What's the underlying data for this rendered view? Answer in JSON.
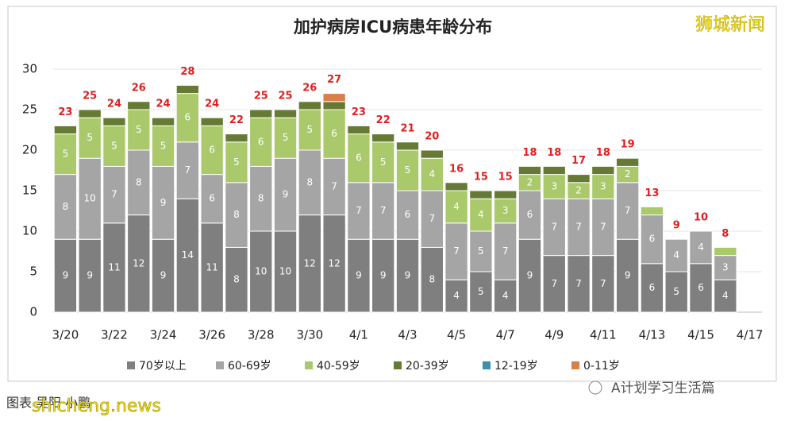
{
  "chart_data": {
    "type": "stacked_bar",
    "title": "加护病房ICU病患年龄分布",
    "categories": [
      "3/20",
      null,
      "3/22",
      null,
      "3/24",
      null,
      "3/26",
      null,
      "3/28",
      null,
      "3/30",
      null,
      "4/1",
      null,
      "4/3",
      null,
      "4/5",
      null,
      "4/7",
      null,
      "4/9",
      null,
      "4/11",
      null,
      "4/13",
      null,
      "4/15",
      null,
      "4/17"
    ],
    "series": [
      {
        "name": "70岁以上",
        "color": "#7f7f7f",
        "values": [
          9,
          9,
          11,
          12,
          9,
          14,
          11,
          8,
          10,
          10,
          12,
          12,
          9,
          9,
          9,
          8,
          4,
          5,
          4,
          9,
          7,
          7,
          7,
          9,
          6,
          5,
          6,
          4,
          null
        ]
      },
      {
        "name": "60-69岁",
        "color": "#a5a5a5",
        "values": [
          8,
          10,
          7,
          8,
          9,
          7,
          6,
          8,
          8,
          9,
          8,
          7,
          7,
          7,
          6,
          7,
          7,
          5,
          7,
          6,
          7,
          7,
          7,
          7,
          6,
          4,
          4,
          3,
          null
        ]
      },
      {
        "name": "40-59岁",
        "color": "#a9c96a",
        "values": [
          5,
          5,
          5,
          5,
          5,
          6,
          6,
          5,
          6,
          5,
          5,
          6,
          6,
          5,
          5,
          4,
          4,
          4,
          3,
          2,
          3,
          2,
          3,
          2,
          1,
          0,
          0,
          1,
          null
        ]
      },
      {
        "name": "20-39岁",
        "color": "#667a35",
        "values": [
          1,
          1,
          1,
          1,
          1,
          1,
          1,
          1,
          1,
          1,
          1,
          1,
          1,
          1,
          1,
          1,
          1,
          1,
          1,
          1,
          1,
          1,
          1,
          1,
          0,
          0,
          0,
          0,
          null
        ]
      },
      {
        "name": "12-19岁",
        "color": "#3c8fae",
        "values": [
          0,
          0,
          0,
          0,
          0,
          0,
          0,
          0,
          0,
          0,
          0,
          0,
          0,
          0,
          0,
          0,
          0,
          0,
          0,
          0,
          0,
          0,
          0,
          0,
          0,
          0,
          0,
          0,
          null
        ]
      },
      {
        "name": "0-11岁",
        "color": "#d9804a",
        "values": [
          0,
          0,
          0,
          0,
          0,
          0,
          0,
          0,
          0,
          0,
          0,
          1,
          0,
          0,
          0,
          0,
          0,
          0,
          0,
          0,
          0,
          0,
          0,
          0,
          0,
          0,
          0,
          0,
          null
        ]
      }
    ],
    "totals": [
      23,
      25,
      24,
      26,
      24,
      28,
      24,
      22,
      25,
      25,
      26,
      27,
      23,
      22,
      21,
      20,
      16,
      15,
      15,
      18,
      18,
      17,
      18,
      19,
      13,
      9,
      10,
      8,
      null
    ],
    "ylim": [
      0,
      30
    ],
    "yticks": [
      0,
      5,
      10,
      15,
      20,
      25,
      30
    ],
    "grid": true
  },
  "watermark": "狮城新闻",
  "footer_credit": "图表 吴阳 小鹏",
  "footer_site": "shicheng.news",
  "footer_account": "A计划学习生活篇"
}
